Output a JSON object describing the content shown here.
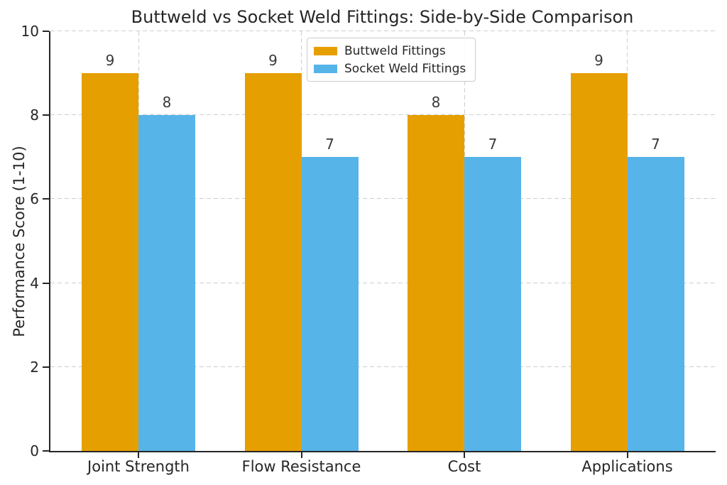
{
  "chart_data": {
    "type": "bar",
    "title": "Buttweld vs Socket Weld Fittings: Side-by-Side Comparison",
    "xlabel": "",
    "ylabel": "Performance Score (1-10)",
    "categories": [
      "Joint Strength",
      "Flow Resistance",
      "Cost",
      "Applications"
    ],
    "series": [
      {
        "name": "Buttweld Fittings",
        "color": "#E69F00",
        "values": [
          9,
          9,
          8,
          9
        ]
      },
      {
        "name": "Socket Weld Fittings",
        "color": "#56B4E9",
        "values": [
          8,
          7,
          7,
          7
        ]
      }
    ],
    "ylim": [
      0,
      10
    ],
    "yticks": [
      0,
      2,
      4,
      6,
      8,
      10
    ],
    "bar_value_labels": true,
    "grid": "dashed, horizontal and vertical",
    "gridline_color": "#cecece",
    "axis_color": "#262626",
    "legend_position": "upper center inside plot",
    "background_color": "#ffffff"
  }
}
